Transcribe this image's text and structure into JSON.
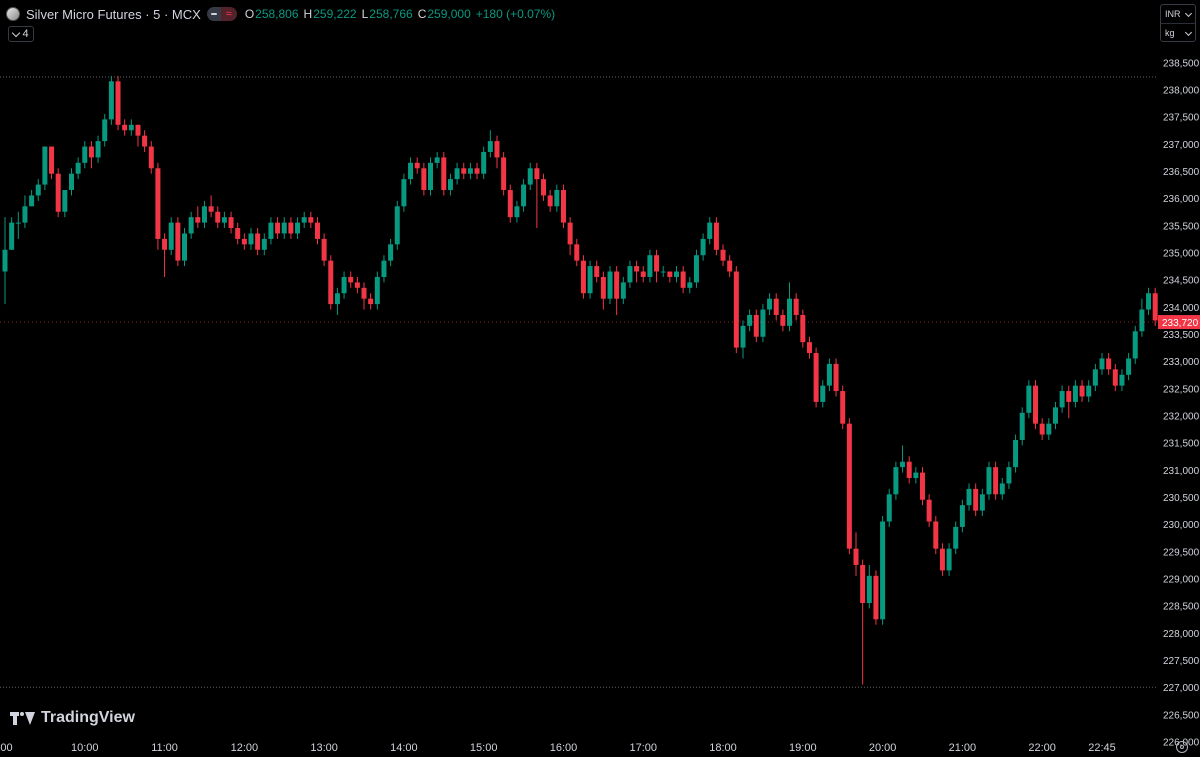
{
  "header": {
    "symbol_title": "Silver Micro Futures · 5 · MCX",
    "open_label": "O",
    "open_value": "258,806",
    "high_label": "H",
    "high_value": "259,222",
    "low_label": "L",
    "low_value": "258,766",
    "close_label": "C",
    "close_value": "259,000",
    "change": "+180 (+0.07%)",
    "symbol_icon": "silver-coin-icon",
    "badge_icons": [
      "minus-icon",
      "approx-icon"
    ],
    "collapse_count": "4"
  },
  "unit_selector": {
    "currency": "INR",
    "unit": "kg"
  },
  "branding": {
    "logo_text": "TradingView"
  },
  "colors": {
    "up": "#089981",
    "down": "#f23645",
    "background": "#000000",
    "axis_text": "#d1d4dc"
  },
  "chart_data": {
    "type": "candlestick",
    "y_axis": {
      "ticks": [
        "226,000",
        "226,500",
        "227,000",
        "227,500",
        "228,000",
        "228,500",
        "229,000",
        "229,500",
        "230,000",
        "230,500",
        "231,000",
        "231,500",
        "232,000",
        "232,500",
        "233,000",
        "233,500",
        "234,000",
        "234,500",
        "235,000",
        "235,500",
        "236,000",
        "236,500",
        "237,000",
        "237,500",
        "238,000",
        "238,500"
      ],
      "range": [
        225900,
        238800
      ]
    },
    "x_axis": {
      "ticks": [
        ":00",
        "10:00",
        "11:00",
        "12:00",
        "13:00",
        "14:00",
        "15:00",
        "16:00",
        "17:00",
        "18:00",
        "19:00",
        "20:00",
        "21:00",
        "22:00",
        "22:45"
      ],
      "tick_times": [
        "09:00",
        "10:00",
        "11:00",
        "12:00",
        "13:00",
        "14:00",
        "15:00",
        "16:00",
        "17:00",
        "18:00",
        "19:00",
        "20:00",
        "21:00",
        "22:00",
        "22:45"
      ]
    },
    "last_price": "233,720",
    "last_price_value": 233720,
    "high_line": 238230,
    "low_line": 227000,
    "candles": [
      [
        "09:00",
        234650,
        235050,
        234050,
        235650
      ],
      [
        "09:05",
        235050,
        235550,
        235050,
        235650
      ],
      [
        "09:10",
        235550,
        235550,
        235250,
        235750
      ],
      [
        "09:15",
        235550,
        235850,
        235450,
        236050
      ],
      [
        "09:20",
        235850,
        236050,
        235850,
        236150
      ],
      [
        "09:25",
        236050,
        236250,
        235950,
        236350
      ],
      [
        "09:30",
        236250,
        236950,
        236150,
        236950
      ],
      [
        "09:35",
        236950,
        236450,
        236350,
        236950
      ],
      [
        "09:40",
        236450,
        235750,
        235650,
        236550
      ],
      [
        "09:45",
        235750,
        236150,
        235650,
        236150
      ],
      [
        "09:50",
        236150,
        236450,
        236050,
        236550
      ],
      [
        "09:55",
        236450,
        236650,
        236350,
        236750
      ],
      [
        "10:00",
        236650,
        236950,
        236550,
        237050
      ],
      [
        "10:05",
        236950,
        236750,
        236550,
        237050
      ],
      [
        "10:10",
        236750,
        237050,
        236650,
        237150
      ],
      [
        "10:15",
        237050,
        237450,
        236950,
        237550
      ],
      [
        "10:20",
        237450,
        238150,
        237350,
        238250
      ],
      [
        "10:25",
        238150,
        237350,
        237250,
        238250
      ],
      [
        "10:30",
        237350,
        237250,
        237150,
        237450
      ],
      [
        "10:35",
        237250,
        237350,
        237150,
        237450
      ],
      [
        "10:40",
        237350,
        237150,
        236950,
        237350
      ],
      [
        "10:45",
        237150,
        236950,
        236850,
        237250
      ],
      [
        "10:50",
        236950,
        236550,
        236450,
        237050
      ],
      [
        "10:55",
        236550,
        235250,
        235050,
        236650
      ],
      [
        "11:00",
        235250,
        235050,
        234550,
        235350
      ],
      [
        "11:05",
        235050,
        235550,
        234950,
        235650
      ],
      [
        "11:10",
        235550,
        234850,
        234750,
        235650
      ],
      [
        "11:15",
        234850,
        235350,
        234750,
        235450
      ],
      [
        "11:20",
        235350,
        235650,
        235250,
        235750
      ],
      [
        "11:25",
        235650,
        235550,
        235450,
        235850
      ],
      [
        "11:30",
        235550,
        235850,
        235450,
        235950
      ],
      [
        "11:35",
        235850,
        235750,
        235650,
        236050
      ],
      [
        "11:40",
        235750,
        235550,
        235450,
        235850
      ],
      [
        "11:45",
        235550,
        235650,
        235450,
        235750
      ],
      [
        "11:50",
        235650,
        235450,
        235350,
        235750
      ],
      [
        "11:55",
        235450,
        235250,
        235150,
        235550
      ],
      [
        "12:00",
        235250,
        235150,
        235050,
        235350
      ],
      [
        "12:05",
        235150,
        235350,
        235050,
        235450
      ],
      [
        "12:10",
        235350,
        235050,
        234950,
        235450
      ],
      [
        "12:15",
        235050,
        235250,
        234950,
        235350
      ],
      [
        "12:20",
        235250,
        235550,
        235150,
        235650
      ],
      [
        "12:25",
        235550,
        235350,
        235250,
        235650
      ],
      [
        "12:30",
        235350,
        235550,
        235250,
        235650
      ],
      [
        "12:35",
        235550,
        235350,
        235250,
        235650
      ],
      [
        "12:40",
        235350,
        235550,
        235250,
        235650
      ],
      [
        "12:45",
        235550,
        235650,
        235450,
        235750
      ],
      [
        "12:50",
        235650,
        235550,
        235450,
        235750
      ],
      [
        "12:55",
        235550,
        235250,
        235150,
        235650
      ],
      [
        "13:00",
        235250,
        234850,
        234750,
        235350
      ],
      [
        "13:05",
        234850,
        234050,
        233950,
        234950
      ],
      [
        "13:10",
        234050,
        234250,
        233850,
        234350
      ],
      [
        "13:15",
        234250,
        234550,
        234150,
        234650
      ],
      [
        "13:20",
        234550,
        234450,
        234350,
        234650
      ],
      [
        "13:25",
        234450,
        234350,
        234250,
        234550
      ],
      [
        "13:30",
        234350,
        234150,
        233950,
        234450
      ],
      [
        "13:35",
        234150,
        234050,
        233950,
        234250
      ],
      [
        "13:40",
        234050,
        234550,
        233950,
        234650
      ],
      [
        "13:45",
        234550,
        234850,
        234450,
        234950
      ],
      [
        "13:50",
        234850,
        235150,
        234750,
        235250
      ],
      [
        "13:55",
        235150,
        235850,
        235050,
        235950
      ],
      [
        "14:00",
        235850,
        236350,
        235750,
        236450
      ],
      [
        "14:05",
        236350,
        236650,
        236250,
        236750
      ],
      [
        "14:10",
        236650,
        236550,
        236450,
        236750
      ],
      [
        "14:15",
        236550,
        236150,
        236050,
        236650
      ],
      [
        "14:20",
        236150,
        236650,
        236050,
        236750
      ],
      [
        "14:25",
        236650,
        236750,
        236550,
        236850
      ],
      [
        "14:30",
        236750,
        236150,
        236050,
        236850
      ],
      [
        "14:35",
        236150,
        236350,
        236050,
        236450
      ],
      [
        "14:40",
        236350,
        236550,
        236250,
        236650
      ],
      [
        "14:45",
        236550,
        236450,
        236350,
        236650
      ],
      [
        "14:50",
        236450,
        236550,
        236350,
        236650
      ],
      [
        "14:55",
        236550,
        236450,
        236350,
        236650
      ],
      [
        "15:00",
        236450,
        236850,
        236350,
        236950
      ],
      [
        "15:05",
        236850,
        237050,
        236750,
        237250
      ],
      [
        "15:10",
        237050,
        236750,
        236550,
        237150
      ],
      [
        "15:15",
        236750,
        236150,
        236050,
        236850
      ],
      [
        "15:20",
        236150,
        235650,
        235550,
        236250
      ],
      [
        "15:25",
        235650,
        235850,
        235550,
        235950
      ],
      [
        "15:30",
        235850,
        236250,
        235750,
        236350
      ],
      [
        "15:35",
        236250,
        236550,
        236150,
        236650
      ],
      [
        "15:40",
        236550,
        236350,
        235450,
        236650
      ],
      [
        "15:45",
        236350,
        236050,
        235950,
        236450
      ],
      [
        "15:50",
        236050,
        235850,
        235750,
        236150
      ],
      [
        "15:55",
        235850,
        236150,
        235750,
        236250
      ],
      [
        "16:00",
        236150,
        235550,
        235450,
        236250
      ],
      [
        "16:05",
        235550,
        235150,
        234950,
        235650
      ],
      [
        "16:10",
        235150,
        234850,
        234750,
        235250
      ],
      [
        "16:15",
        234850,
        234250,
        234150,
        234950
      ],
      [
        "16:20",
        234250,
        234750,
        234150,
        234850
      ],
      [
        "16:25",
        234750,
        234550,
        234450,
        234850
      ],
      [
        "16:30",
        234550,
        234150,
        233950,
        234650
      ],
      [
        "16:35",
        234150,
        234650,
        234050,
        234750
      ],
      [
        "16:40",
        234650,
        234150,
        233850,
        234750
      ],
      [
        "16:45",
        234150,
        234450,
        234050,
        234550
      ],
      [
        "16:50",
        234450,
        234750,
        234350,
        234850
      ],
      [
        "16:55",
        234750,
        234650,
        234450,
        234850
      ],
      [
        "17:00",
        234650,
        234550,
        234450,
        234750
      ],
      [
        "17:05",
        234550,
        234950,
        234450,
        235050
      ],
      [
        "17:10",
        234950,
        234650,
        234450,
        235050
      ],
      [
        "17:15",
        234650,
        234650,
        234550,
        234750
      ],
      [
        "17:20",
        234650,
        234550,
        234450,
        234650
      ],
      [
        "17:25",
        234550,
        234650,
        234450,
        234750
      ],
      [
        "17:30",
        234650,
        234350,
        234250,
        234750
      ],
      [
        "17:35",
        234350,
        234450,
        234250,
        234550
      ],
      [
        "17:40",
        234450,
        234950,
        234350,
        235050
      ],
      [
        "17:45",
        234950,
        235250,
        234850,
        235350
      ],
      [
        "17:50",
        235250,
        235550,
        235150,
        235650
      ],
      [
        "17:55",
        235550,
        235050,
        234950,
        235650
      ],
      [
        "18:00",
        235050,
        234850,
        234750,
        235150
      ],
      [
        "18:05",
        234850,
        234650,
        234550,
        234950
      ],
      [
        "18:10",
        234650,
        233250,
        233150,
        234750
      ],
      [
        "18:15",
        233250,
        233650,
        233050,
        233750
      ],
      [
        "18:20",
        233650,
        233850,
        233550,
        233950
      ],
      [
        "18:25",
        233850,
        233450,
        233350,
        233950
      ],
      [
        "18:30",
        233450,
        233950,
        233350,
        234050
      ],
      [
        "18:35",
        233950,
        234150,
        233850,
        234250
      ],
      [
        "18:40",
        234150,
        233850,
        233750,
        234250
      ],
      [
        "18:45",
        233850,
        233650,
        233550,
        233950
      ],
      [
        "18:50",
        233650,
        234150,
        233550,
        234450
      ],
      [
        "18:55",
        234150,
        233850,
        233750,
        234250
      ],
      [
        "19:00",
        233850,
        233350,
        233250,
        233950
      ],
      [
        "19:05",
        233350,
        233150,
        233050,
        233450
      ],
      [
        "19:10",
        233150,
        232250,
        232150,
        233250
      ],
      [
        "19:15",
        232250,
        232550,
        232150,
        232650
      ],
      [
        "19:20",
        232550,
        232950,
        232450,
        233050
      ],
      [
        "19:25",
        232950,
        232450,
        232350,
        233050
      ],
      [
        "19:30",
        232450,
        231850,
        231750,
        232550
      ],
      [
        "19:35",
        231850,
        229550,
        229450,
        231950
      ],
      [
        "19:40",
        229550,
        229250,
        229050,
        229850
      ],
      [
        "19:45",
        229250,
        228550,
        227050,
        229350
      ],
      [
        "19:50",
        228550,
        229050,
        228450,
        229250
      ],
      [
        "19:55",
        229050,
        228250,
        228150,
        229150
      ],
      [
        "20:00",
        228250,
        230050,
        228150,
        230150
      ],
      [
        "20:05",
        230050,
        230550,
        229950,
        230650
      ],
      [
        "20:10",
        230550,
        231050,
        230450,
        231150
      ],
      [
        "20:15",
        231050,
        231150,
        230950,
        231450
      ],
      [
        "20:20",
        231150,
        230850,
        230750,
        231250
      ],
      [
        "20:25",
        230850,
        230950,
        230750,
        231050
      ],
      [
        "20:30",
        230950,
        230450,
        230350,
        231050
      ],
      [
        "20:35",
        230450,
        230050,
        229950,
        230550
      ],
      [
        "20:40",
        230050,
        229550,
        229450,
        230150
      ],
      [
        "20:45",
        229550,
        229150,
        229050,
        229650
      ],
      [
        "20:50",
        229150,
        229550,
        229050,
        229650
      ],
      [
        "20:55",
        229550,
        229950,
        229450,
        230050
      ],
      [
        "21:00",
        229950,
        230350,
        229850,
        230450
      ],
      [
        "21:05",
        230350,
        230650,
        230250,
        230750
      ],
      [
        "21:10",
        230650,
        230250,
        230150,
        230750
      ],
      [
        "21:15",
        230250,
        230550,
        230150,
        230650
      ],
      [
        "21:20",
        230550,
        231050,
        230450,
        231150
      ],
      [
        "21:25",
        231050,
        230550,
        230450,
        231150
      ],
      [
        "21:30",
        230550,
        230750,
        230450,
        230850
      ],
      [
        "21:35",
        230750,
        231050,
        230650,
        231150
      ],
      [
        "21:40",
        231050,
        231550,
        230950,
        231650
      ],
      [
        "21:45",
        231550,
        232050,
        231450,
        232150
      ],
      [
        "21:50",
        232050,
        232550,
        231950,
        232650
      ],
      [
        "21:55",
        232550,
        231850,
        231750,
        232650
      ],
      [
        "22:00",
        231850,
        231650,
        231550,
        231950
      ],
      [
        "22:05",
        231650,
        231850,
        231550,
        231950
      ],
      [
        "22:10",
        231850,
        232150,
        231750,
        232250
      ],
      [
        "22:15",
        232150,
        232450,
        232050,
        232550
      ],
      [
        "22:20",
        232450,
        232250,
        231950,
        232550
      ],
      [
        "22:25",
        232250,
        232550,
        232150,
        232650
      ],
      [
        "22:30",
        232550,
        232350,
        232250,
        232650
      ],
      [
        "22:35",
        232350,
        232550,
        232250,
        232650
      ],
      [
        "22:40",
        232550,
        232850,
        232450,
        232950
      ],
      [
        "22:45",
        232850,
        233050,
        232750,
        233150
      ],
      [
        "22:50",
        233050,
        232850,
        232750,
        233150
      ],
      [
        "22:55",
        232850,
        232550,
        232450,
        232950
      ],
      [
        "23:00",
        232550,
        232750,
        232450,
        232850
      ],
      [
        "23:05",
        232750,
        233050,
        232650,
        233150
      ],
      [
        "23:10",
        233050,
        233550,
        232950,
        233650
      ],
      [
        "23:15",
        233550,
        233950,
        233450,
        234150
      ],
      [
        "23:20",
        233950,
        234250,
        233850,
        234350
      ],
      [
        "23:25",
        234250,
        233750,
        233650,
        234350
      ],
      [
        "23:30",
        233750,
        233850,
        233650,
        233950
      ],
      [
        "23:35",
        233850,
        234050,
        233750,
        234150
      ],
      [
        "23:40",
        234050,
        233720,
        233620,
        234150
      ]
    ]
  }
}
